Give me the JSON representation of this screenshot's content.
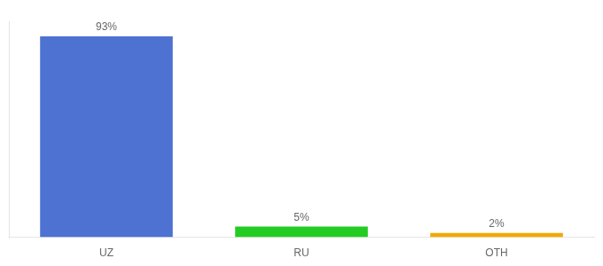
{
  "chart_data": {
    "type": "bar",
    "categories": [
      "UZ",
      "RU",
      "OTH"
    ],
    "values": [
      93,
      5,
      2
    ],
    "value_labels": [
      "93%",
      "5%",
      "2%"
    ],
    "colors": [
      "#4d72d1",
      "#22cc22",
      "#f0a800"
    ],
    "ylim": [
      0,
      100
    ],
    "grid": false,
    "data_labels": true,
    "tick_labels": "x"
  }
}
